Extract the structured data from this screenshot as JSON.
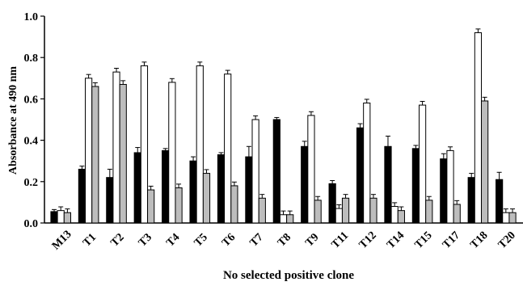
{
  "chart_data": {
    "type": "bar",
    "xlabel": "No selected positive clone",
    "ylabel": "Absorbance at 490 nm",
    "ylim": [
      0,
      1.0
    ],
    "yticks": [
      0.0,
      0.2,
      0.4,
      0.6,
      0.8,
      1.0
    ],
    "ytick_labels": [
      "0.0",
      "0.2",
      "0.4",
      "0.6",
      "0.8",
      "1.0"
    ],
    "grid": false,
    "categories": [
      "M13",
      "T1",
      "T2",
      "T3",
      "T4",
      "T5",
      "T6",
      "T7",
      "T8",
      "T9",
      "T11",
      "T12",
      "T14",
      "T15",
      "T17",
      "T18",
      "T20"
    ],
    "series": [
      {
        "color": "#000000",
        "values": [
          0.055,
          0.26,
          0.22,
          0.34,
          0.35,
          0.3,
          0.33,
          0.32,
          0.5,
          0.37,
          0.19,
          0.46,
          0.37,
          0.36,
          0.31,
          0.22,
          0.21
        ],
        "errors": [
          0.01,
          0.015,
          0.04,
          0.025,
          0.01,
          0.02,
          0.01,
          0.05,
          0.01,
          0.025,
          0.015,
          0.02,
          0.05,
          0.015,
          0.025,
          0.02,
          0.035
        ]
      },
      {
        "color": "#ffffff",
        "values": [
          0.06,
          0.7,
          0.73,
          0.76,
          0.68,
          0.76,
          0.72,
          0.5,
          0.04,
          0.52,
          0.07,
          0.58,
          0.08,
          0.57,
          0.35,
          0.92,
          0.05
        ]
      },
      {
        "color": "#bdbdbd",
        "values": [
          0.05,
          0.66,
          0.67,
          0.16,
          0.17,
          0.24,
          0.18,
          0.12,
          0.04,
          0.11,
          0.12,
          0.12,
          0.06,
          0.11,
          0.09,
          0.59,
          0.05
        ]
      }
    ]
  }
}
